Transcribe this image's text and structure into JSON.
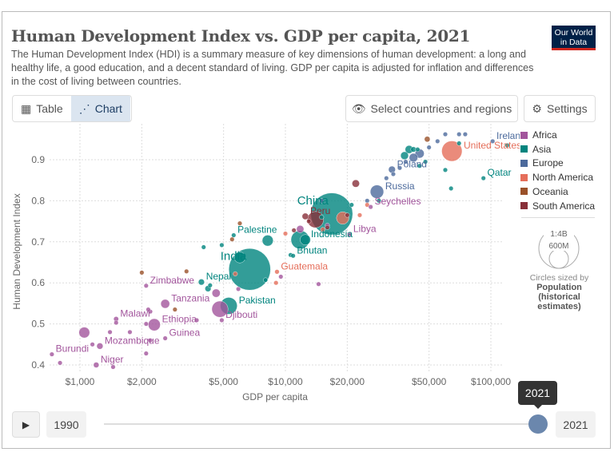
{
  "title": "Human Development Index vs. GDP per capita, 2021",
  "subtitle": "The Human Development Index (HDI) is a summary measure of key dimensions of human development: a long and healthy life, a good education, and a decent standard of living. GDP per capita is adjusted for inflation and differences in the cost of living between countries.",
  "logo": "Our World in Data",
  "toolbar": {
    "table_label": "Table",
    "chart_label": "Chart",
    "select_label": "Select countries and regions",
    "settings_label": "Settings",
    "active_tab": "Chart"
  },
  "timeline": {
    "start": "1990",
    "end": "2021",
    "current": "2021",
    "tooltip": "2021",
    "position": 1.0
  },
  "size_legend": {
    "large": "1:4B",
    "small": "600M",
    "caption": "Circles sized by",
    "variable": "Population (historical estimates)"
  },
  "chart_data": {
    "type": "scatter",
    "xlabel": "GDP per capita",
    "ylabel": "Human Development Index",
    "x_scale": "log",
    "xlim": [
      700,
      135000
    ],
    "ylim": [
      0.39,
      0.97
    ],
    "x_ticks": [
      {
        "v": 1000,
        "label": "$1,000"
      },
      {
        "v": 2000,
        "label": "$2,000"
      },
      {
        "v": 5000,
        "label": "$5,000"
      },
      {
        "v": 10000,
        "label": "$10,000"
      },
      {
        "v": 20000,
        "label": "$20,000"
      },
      {
        "v": 50000,
        "label": "$50,000"
      },
      {
        "v": 100000,
        "label": "$100,000"
      }
    ],
    "y_ticks": [
      {
        "v": 0.4,
        "label": "0.4"
      },
      {
        "v": 0.5,
        "label": "0.5"
      },
      {
        "v": 0.6,
        "label": "0.6"
      },
      {
        "v": 0.7,
        "label": "0.7"
      },
      {
        "v": 0.8,
        "label": "0.8"
      },
      {
        "v": 0.9,
        "label": "0.9"
      }
    ],
    "grid": true,
    "legend_position": "right",
    "legend": [
      {
        "name": "Africa",
        "color": "#a2559c"
      },
      {
        "name": "Asia",
        "color": "#00847e"
      },
      {
        "name": "Europe",
        "color": "#4c6a9c"
      },
      {
        "name": "North America",
        "color": "#e56e5a"
      },
      {
        "name": "Oceania",
        "color": "#9a5129"
      },
      {
        "name": "South America",
        "color": "#883039"
      }
    ],
    "labeled": [
      {
        "name": "India",
        "gdp": 6700,
        "hdi": 0.633,
        "cont": 1,
        "pop": 1408
      },
      {
        "name": "China",
        "gdp": 16800,
        "hdi": 0.768,
        "cont": 1,
        "pop": 1426
      },
      {
        "name": "United States",
        "gdp": 64600,
        "hdi": 0.921,
        "cont": 3,
        "pop": 337
      },
      {
        "name": "Ireland",
        "gdp": 102000,
        "hdi": 0.945,
        "cont": 2,
        "pop": 5
      },
      {
        "name": "Qatar",
        "gdp": 92000,
        "hdi": 0.855,
        "cont": 1,
        "pop": 3
      },
      {
        "name": "Poland",
        "gdp": 33000,
        "hdi": 0.876,
        "cont": 2,
        "pop": 39
      },
      {
        "name": "Russia",
        "gdp": 27900,
        "hdi": 0.822,
        "cont": 2,
        "pop": 145
      },
      {
        "name": "Seychelles",
        "gdp": 26000,
        "hdi": 0.785,
        "cont": 0,
        "pop": 1
      },
      {
        "name": "Libya",
        "gdp": 20500,
        "hdi": 0.718,
        "cont": 0,
        "pop": 7
      },
      {
        "name": "Peru",
        "gdp": 12500,
        "hdi": 0.762,
        "cont": 5,
        "pop": 34
      },
      {
        "name": "Indonesia",
        "gdp": 11800,
        "hdi": 0.705,
        "cont": 1,
        "pop": 274
      },
      {
        "name": "Bhutan",
        "gdp": 10900,
        "hdi": 0.666,
        "cont": 1,
        "pop": 1
      },
      {
        "name": "Guatemala",
        "gdp": 9100,
        "hdi": 0.627,
        "cont": 3,
        "pop": 17
      },
      {
        "name": "Palestine",
        "gdp": 5600,
        "hdi": 0.716,
        "cont": 1,
        "pop": 5
      },
      {
        "name": "Nepal",
        "gdp": 3900,
        "hdi": 0.602,
        "cont": 1,
        "pop": 30
      },
      {
        "name": "Pakistan",
        "gdp": 5300,
        "hdi": 0.544,
        "cont": 1,
        "pop": 231
      },
      {
        "name": "Zimbabwe",
        "gdp": 2100,
        "hdi": 0.593,
        "cont": 0,
        "pop": 16
      },
      {
        "name": "Tanzania",
        "gdp": 2600,
        "hdi": 0.549,
        "cont": 0,
        "pop": 64
      },
      {
        "name": "Malawi",
        "gdp": 1500,
        "hdi": 0.512,
        "cont": 0,
        "pop": 20
      },
      {
        "name": "Ethiopia",
        "gdp": 2300,
        "hdi": 0.498,
        "cont": 0,
        "pop": 120
      },
      {
        "name": "Djibouti",
        "gdp": 4900,
        "hdi": 0.509,
        "cont": 0,
        "pop": 1
      },
      {
        "name": "Guinea",
        "gdp": 2600,
        "hdi": 0.465,
        "cont": 0,
        "pop": 14
      },
      {
        "name": "Mozambique",
        "gdp": 1250,
        "hdi": 0.446,
        "cont": 0,
        "pop": 32
      },
      {
        "name": "Burundi",
        "gdp": 730,
        "hdi": 0.426,
        "cont": 0,
        "pop": 13
      },
      {
        "name": "Niger",
        "gdp": 1200,
        "hdi": 0.4,
        "cont": 0,
        "pop": 25
      }
    ],
    "unlabeled": [
      [
        800,
        0.405,
        0,
        8
      ],
      [
        1050,
        0.479,
        0,
        95
      ],
      [
        1400,
        0.48,
        0,
        10
      ],
      [
        1500,
        0.503,
        0,
        15
      ],
      [
        1750,
        0.48,
        0,
        8
      ],
      [
        2100,
        0.428,
        0,
        8
      ],
      [
        2100,
        0.5,
        0,
        8
      ],
      [
        2200,
        0.46,
        0,
        8
      ],
      [
        2200,
        0.53,
        0,
        12
      ],
      [
        2150,
        0.535,
        0,
        6
      ],
      [
        3700,
        0.509,
        0,
        8
      ],
      [
        4800,
        0.536,
        0,
        213
      ],
      [
        4600,
        0.575,
        0,
        55
      ],
      [
        5900,
        0.585,
        0,
        8
      ],
      [
        9500,
        0.615,
        0,
        6
      ],
      [
        14500,
        0.597,
        0,
        3
      ],
      [
        11800,
        0.731,
        0,
        44
      ],
      [
        16000,
        0.74,
        0,
        5
      ],
      [
        1450,
        0.395,
        0,
        8
      ],
      [
        1150,
        0.45,
        0,
        6
      ],
      [
        4000,
        0.687,
        1,
        5
      ],
      [
        4900,
        0.692,
        1,
        5
      ],
      [
        4300,
        0.594,
        1,
        5
      ],
      [
        4200,
        0.586,
        1,
        30
      ],
      [
        6000,
        0.662,
        1,
        100
      ],
      [
        8200,
        0.703,
        1,
        98
      ],
      [
        8000,
        0.607,
        1,
        7
      ],
      [
        12500,
        0.705,
        1,
        88
      ],
      [
        10600,
        0.668,
        1,
        5
      ],
      [
        15000,
        0.76,
        1,
        10
      ],
      [
        21000,
        0.79,
        1,
        5
      ],
      [
        28500,
        0.8,
        1,
        5
      ],
      [
        38000,
        0.91,
        1,
        50
      ],
      [
        40000,
        0.925,
        1,
        52
      ],
      [
        42000,
        0.925,
        1,
        24
      ],
      [
        44000,
        0.925,
        1,
        5
      ],
      [
        48000,
        0.895,
        1,
        4
      ],
      [
        60000,
        0.875,
        1,
        5
      ],
      [
        64000,
        0.83,
        1,
        3
      ],
      [
        70000,
        0.94,
        1,
        8
      ],
      [
        120000,
        0.935,
        1,
        6
      ],
      [
        45000,
        0.885,
        1,
        3
      ],
      [
        15000,
        0.8,
        2,
        5
      ],
      [
        25000,
        0.8,
        2,
        5
      ],
      [
        31000,
        0.855,
        2,
        10
      ],
      [
        33500,
        0.865,
        2,
        10
      ],
      [
        36000,
        0.88,
        2,
        5
      ],
      [
        38500,
        0.895,
        2,
        5
      ],
      [
        50000,
        0.93,
        2,
        6
      ],
      [
        55000,
        0.945,
        2,
        8
      ],
      [
        60000,
        0.962,
        2,
        5
      ],
      [
        70000,
        0.962,
        2,
        5
      ],
      [
        75000,
        0.962,
        2,
        5
      ],
      [
        42000,
        0.905,
        2,
        60
      ],
      [
        45000,
        0.915,
        2,
        67
      ],
      [
        5700,
        0.622,
        3,
        10
      ],
      [
        9000,
        0.6,
        3,
        5
      ],
      [
        15200,
        0.73,
        3,
        5
      ],
      [
        19000,
        0.758,
        3,
        126
      ],
      [
        25000,
        0.79,
        3,
        5
      ],
      [
        10000,
        0.72,
        3,
        11
      ],
      [
        23000,
        0.765,
        3,
        3
      ],
      [
        2000,
        0.625,
        4,
        3
      ],
      [
        3300,
        0.628,
        4,
        3
      ],
      [
        2900,
        0.535,
        4,
        9
      ],
      [
        5500,
        0.706,
        4,
        3
      ],
      [
        6000,
        0.745,
        4,
        3
      ],
      [
        49000,
        0.95,
        4,
        26
      ],
      [
        14000,
        0.754,
        5,
        214
      ],
      [
        13000,
        0.75,
        5,
        5
      ],
      [
        16000,
        0.735,
        5,
        5
      ],
      [
        22000,
        0.842,
        5,
        45
      ],
      [
        20000,
        0.765,
        5,
        5
      ],
      [
        11000,
        0.728,
        5,
        5
      ]
    ]
  }
}
